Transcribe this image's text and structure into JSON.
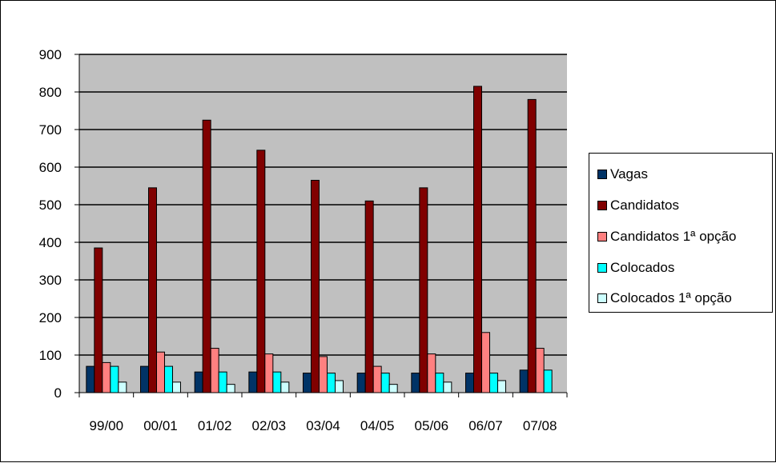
{
  "chart_data": {
    "type": "bar",
    "categories": [
      "99/00",
      "00/01",
      "01/02",
      "02/03",
      "03/04",
      "04/05",
      "05/06",
      "06/07",
      "07/08"
    ],
    "series": [
      {
        "name": "Vagas",
        "color": "#003366",
        "values": [
          70,
          70,
          55,
          55,
          52,
          52,
          52,
          52,
          60
        ]
      },
      {
        "name": "Candidatos",
        "color": "#800000",
        "values": [
          385,
          545,
          725,
          645,
          565,
          510,
          545,
          815,
          780
        ]
      },
      {
        "name": "Candidatos 1ª opção",
        "color": "#FF8080",
        "values": [
          80,
          108,
          118,
          103,
          96,
          70,
          103,
          160,
          118
        ]
      },
      {
        "name": "Colocados",
        "color": "#00FFFF",
        "values": [
          70,
          70,
          55,
          55,
          52,
          52,
          52,
          52,
          60
        ]
      },
      {
        "name": "Colocados 1ª opção",
        "color": "#CCFFFF",
        "values": [
          28,
          28,
          22,
          28,
          32,
          22,
          28,
          32,
          0
        ]
      }
    ],
    "yticks": [
      "0",
      "100",
      "200",
      "300",
      "400",
      "500",
      "600",
      "700",
      "800",
      "900"
    ],
    "ylim": [
      0,
      900
    ],
    "grid": true,
    "plot_background": "#C0C0C0",
    "legend_position": "right"
  }
}
